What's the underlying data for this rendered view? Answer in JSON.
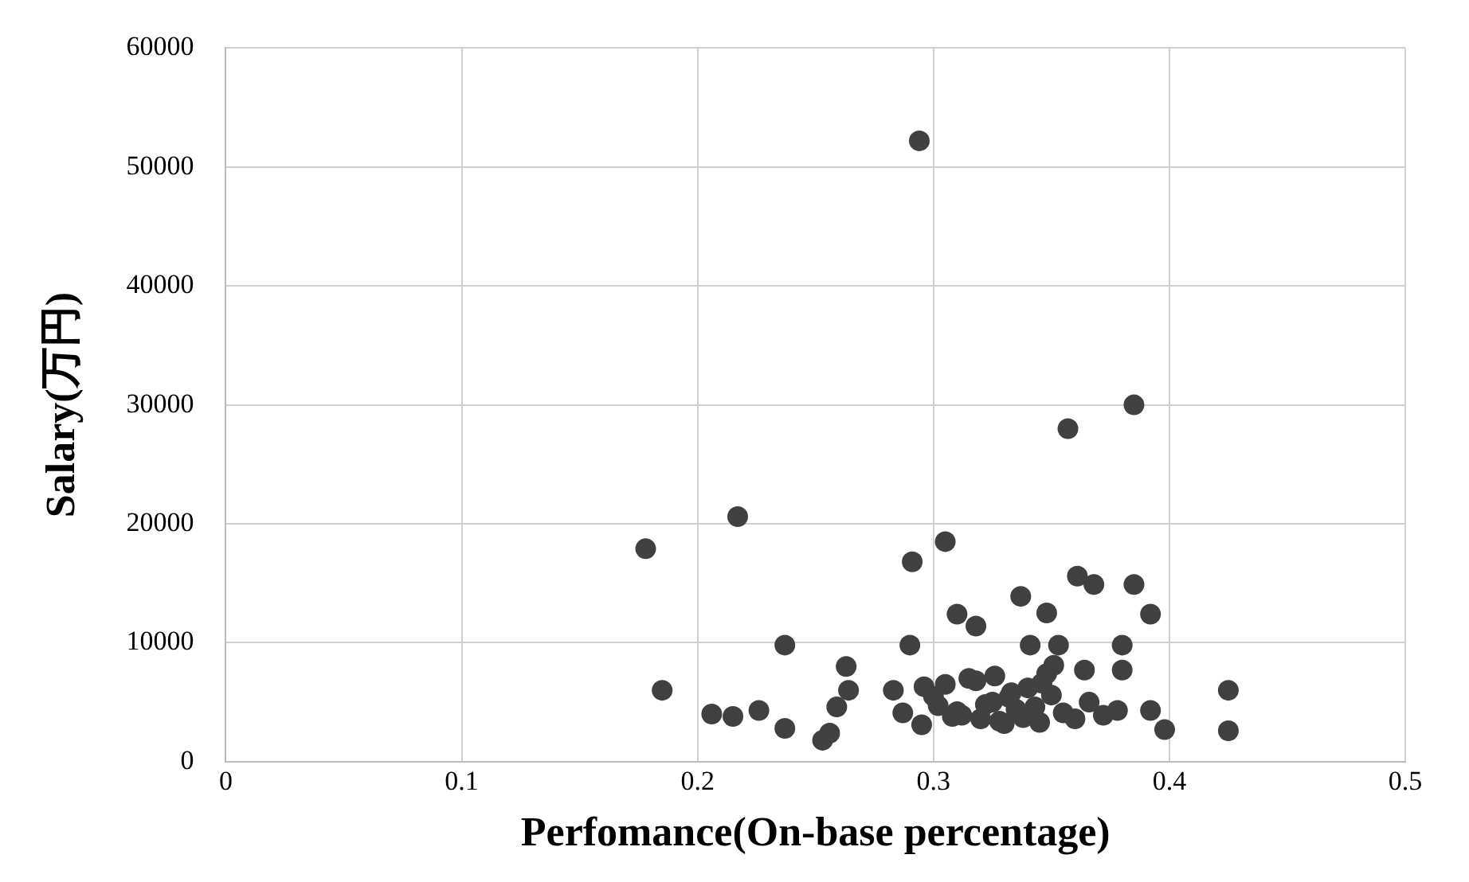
{
  "chart_data": {
    "type": "scatter",
    "xlabel": "Perfomance(On-base percentage)",
    "ylabel": "Salary(万円)",
    "xlim": [
      0,
      0.5
    ],
    "xticks": [
      {
        "value": 0,
        "label": "0"
      },
      {
        "value": 0.1,
        "label": "0.1"
      },
      {
        "value": 0.2,
        "label": "0.2"
      },
      {
        "value": 0.3,
        "label": "0.3"
      },
      {
        "value": 0.4,
        "label": "0.4"
      },
      {
        "value": 0.5,
        "label": "0.5"
      }
    ],
    "ylim": [
      0,
      60000
    ],
    "yticks": [
      0,
      10000,
      20000,
      30000,
      40000,
      50000,
      60000
    ],
    "grid": true,
    "legend": false,
    "marker": "circle",
    "series": [
      {
        "color": "#404040",
        "x": [
          0.294,
          0.385,
          0.357,
          0.217,
          0.178,
          0.291,
          0.305,
          0.237,
          0.29,
          0.185,
          0.263,
          0.264,
          0.259,
          0.206,
          0.215,
          0.226,
          0.237,
          0.253,
          0.256,
          0.283,
          0.287,
          0.361,
          0.368,
          0.385,
          0.337,
          0.31,
          0.318,
          0.348,
          0.392,
          0.341,
          0.353,
          0.38,
          0.351,
          0.364,
          0.38,
          0.425,
          0.425,
          0.398,
          0.392,
          0.378,
          0.295,
          0.3,
          0.305,
          0.31,
          0.315,
          0.32,
          0.325,
          0.33,
          0.335,
          0.34,
          0.345,
          0.35,
          0.312,
          0.318,
          0.322,
          0.328,
          0.333,
          0.338,
          0.343,
          0.348,
          0.355,
          0.36,
          0.366,
          0.372,
          0.296,
          0.302,
          0.308,
          0.326,
          0.332,
          0.346
        ],
        "values": [
          52200,
          30000,
          28000,
          20600,
          17900,
          16800,
          18500,
          9800,
          9800,
          6000,
          8000,
          6000,
          4600,
          4000,
          3800,
          4300,
          2800,
          1800,
          2400,
          6000,
          4100,
          15600,
          14900,
          14900,
          13900,
          12400,
          11400,
          12500,
          12400,
          9800,
          9800,
          9800,
          8100,
          7700,
          7700,
          6000,
          2600,
          2700,
          4300,
          4300,
          3100,
          5500,
          6500,
          4200,
          7000,
          3600,
          5000,
          3200,
          4400,
          6200,
          3300,
          5600,
          3900,
          6800,
          4800,
          3400,
          5800,
          3700,
          4600,
          7400,
          4100,
          3600,
          5000,
          3900,
          6300,
          4700,
          3800,
          7200,
          5400,
          6600
        ]
      }
    ]
  }
}
